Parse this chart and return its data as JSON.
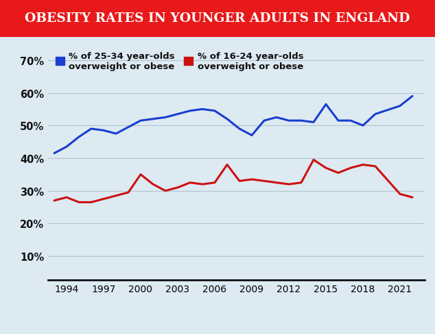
{
  "title": "OBESITY RATES IN YOUNGER ADULTS IN ENGLAND",
  "title_bg_color": "#e8191a",
  "title_text_color": "#ffffff",
  "bg_color": "#ddeaf2",
  "years_blue": [
    1993,
    1994,
    1995,
    1996,
    1997,
    1998,
    1999,
    2000,
    2001,
    2002,
    2003,
    2004,
    2005,
    2006,
    2007,
    2008,
    2009,
    2010,
    2011,
    2012,
    2013,
    2014,
    2015,
    2016,
    2017,
    2018,
    2019,
    2021,
    2022
  ],
  "values_blue": [
    41.5,
    43.5,
    46.5,
    49.0,
    48.5,
    47.5,
    49.5,
    51.5,
    52.0,
    52.5,
    53.5,
    54.5,
    55.0,
    54.5,
    52.0,
    49.0,
    47.0,
    51.5,
    52.5,
    51.5,
    51.5,
    51.0,
    56.5,
    51.5,
    51.5,
    50.0,
    53.5,
    56.0,
    59.0
  ],
  "years_red": [
    1993,
    1994,
    1995,
    1996,
    1997,
    1998,
    1999,
    2000,
    2001,
    2002,
    2003,
    2004,
    2005,
    2006,
    2007,
    2008,
    2009,
    2010,
    2011,
    2012,
    2013,
    2014,
    2015,
    2016,
    2017,
    2018,
    2019,
    2021,
    2022
  ],
  "values_red": [
    27.0,
    28.0,
    26.5,
    26.5,
    27.5,
    28.5,
    29.5,
    35.0,
    32.0,
    30.0,
    31.0,
    32.5,
    32.0,
    32.5,
    38.0,
    33.0,
    33.5,
    33.0,
    32.5,
    32.0,
    32.5,
    39.5,
    37.0,
    35.5,
    37.0,
    38.0,
    37.5,
    29.0,
    28.0
  ],
  "blue_color": "#1a3ecf",
  "red_color": "#cc1111",
  "legend1_label": "% of 25-34 year-olds\noverweight or obese",
  "legend2_label": "% of 16-24 year-olds\noverweight or obese",
  "yticks": [
    10,
    20,
    30,
    40,
    50,
    60,
    70
  ],
  "xticks": [
    1994,
    1997,
    2000,
    2003,
    2006,
    2009,
    2012,
    2015,
    2018,
    2021
  ],
  "ylim": [
    5,
    75
  ],
  "xlim": [
    1992.5,
    2023.0
  ]
}
